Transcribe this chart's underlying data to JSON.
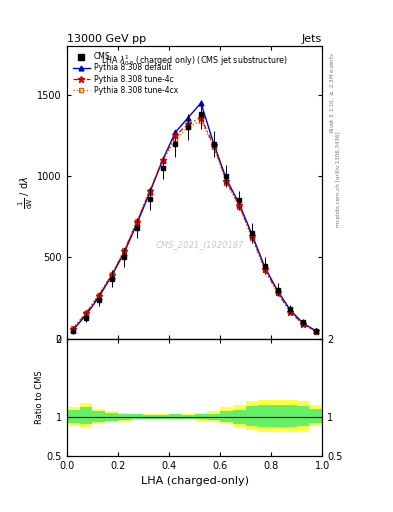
{
  "title_top": "13000 GeV pp",
  "title_right": "Jets",
  "plot_title": "LHA $\\lambda^{1}_{0.5}$ (charged only) (CMS jet substructure)",
  "xlabel": "LHA (charged-only)",
  "right_label_top": "Rivet 3.1.10, $\\geq$ 2.3M events",
  "right_label_bot": "mcplots.cern.ch [arXiv:1306.3436]",
  "watermark": "CMS_2021_I1920187",
  "xlim": [
    0,
    1
  ],
  "ylim": [
    0,
    1800
  ],
  "ratio_ylim": [
    0.5,
    2.0
  ],
  "yticks": [
    0,
    500,
    1000,
    1500
  ],
  "lha_bins": [
    0.0,
    0.05,
    0.1,
    0.15,
    0.2,
    0.25,
    0.3,
    0.35,
    0.4,
    0.45,
    0.5,
    0.55,
    0.6,
    0.65,
    0.7,
    0.75,
    0.8,
    0.85,
    0.9,
    0.95,
    1.0
  ],
  "cms_values": [
    50,
    130,
    240,
    370,
    500,
    680,
    860,
    1050,
    1200,
    1300,
    1380,
    1200,
    1000,
    850,
    650,
    450,
    300,
    180,
    100,
    50
  ],
  "cms_errors": [
    20,
    30,
    40,
    50,
    60,
    60,
    70,
    70,
    80,
    80,
    90,
    80,
    70,
    60,
    60,
    50,
    40,
    30,
    20,
    15
  ],
  "pythia_default_values": [
    55,
    145,
    255,
    385,
    530,
    710,
    900,
    1100,
    1270,
    1360,
    1450,
    1200,
    980,
    830,
    640,
    440,
    295,
    175,
    95,
    48
  ],
  "pythia_4c_values": [
    60,
    155,
    265,
    390,
    540,
    720,
    910,
    1100,
    1250,
    1320,
    1360,
    1190,
    970,
    820,
    630,
    430,
    285,
    165,
    90,
    45
  ],
  "pythia_4cx_values": [
    65,
    160,
    270,
    395,
    545,
    725,
    910,
    1090,
    1230,
    1300,
    1340,
    1180,
    960,
    810,
    620,
    420,
    280,
    162,
    88,
    43
  ],
  "cms_color": "#000000",
  "pythia_default_color": "#0000cc",
  "pythia_4c_color": "#cc0000",
  "pythia_4cx_color": "#cc6600",
  "ratio_yellow_band_lo": [
    0.88,
    0.85,
    0.9,
    0.93,
    0.95,
    0.96,
    0.97,
    0.97,
    0.96,
    0.97,
    0.95,
    0.93,
    0.9,
    0.87,
    0.83,
    0.8,
    0.8,
    0.8,
    0.82,
    0.88
  ],
  "ratio_yellow_band_hi": [
    1.12,
    1.17,
    1.1,
    1.07,
    1.05,
    1.04,
    1.03,
    1.03,
    1.04,
    1.03,
    1.05,
    1.07,
    1.12,
    1.15,
    1.2,
    1.22,
    1.22,
    1.22,
    1.2,
    1.15
  ],
  "ratio_green_band_lo": [
    0.92,
    0.9,
    0.93,
    0.95,
    0.96,
    0.97,
    0.975,
    0.975,
    0.97,
    0.975,
    0.965,
    0.96,
    0.93,
    0.91,
    0.88,
    0.87,
    0.87,
    0.87,
    0.88,
    0.92
  ],
  "ratio_green_band_hi": [
    1.08,
    1.12,
    1.07,
    1.05,
    1.04,
    1.03,
    1.025,
    1.025,
    1.03,
    1.025,
    1.035,
    1.04,
    1.07,
    1.09,
    1.14,
    1.15,
    1.15,
    1.15,
    1.14,
    1.1
  ]
}
